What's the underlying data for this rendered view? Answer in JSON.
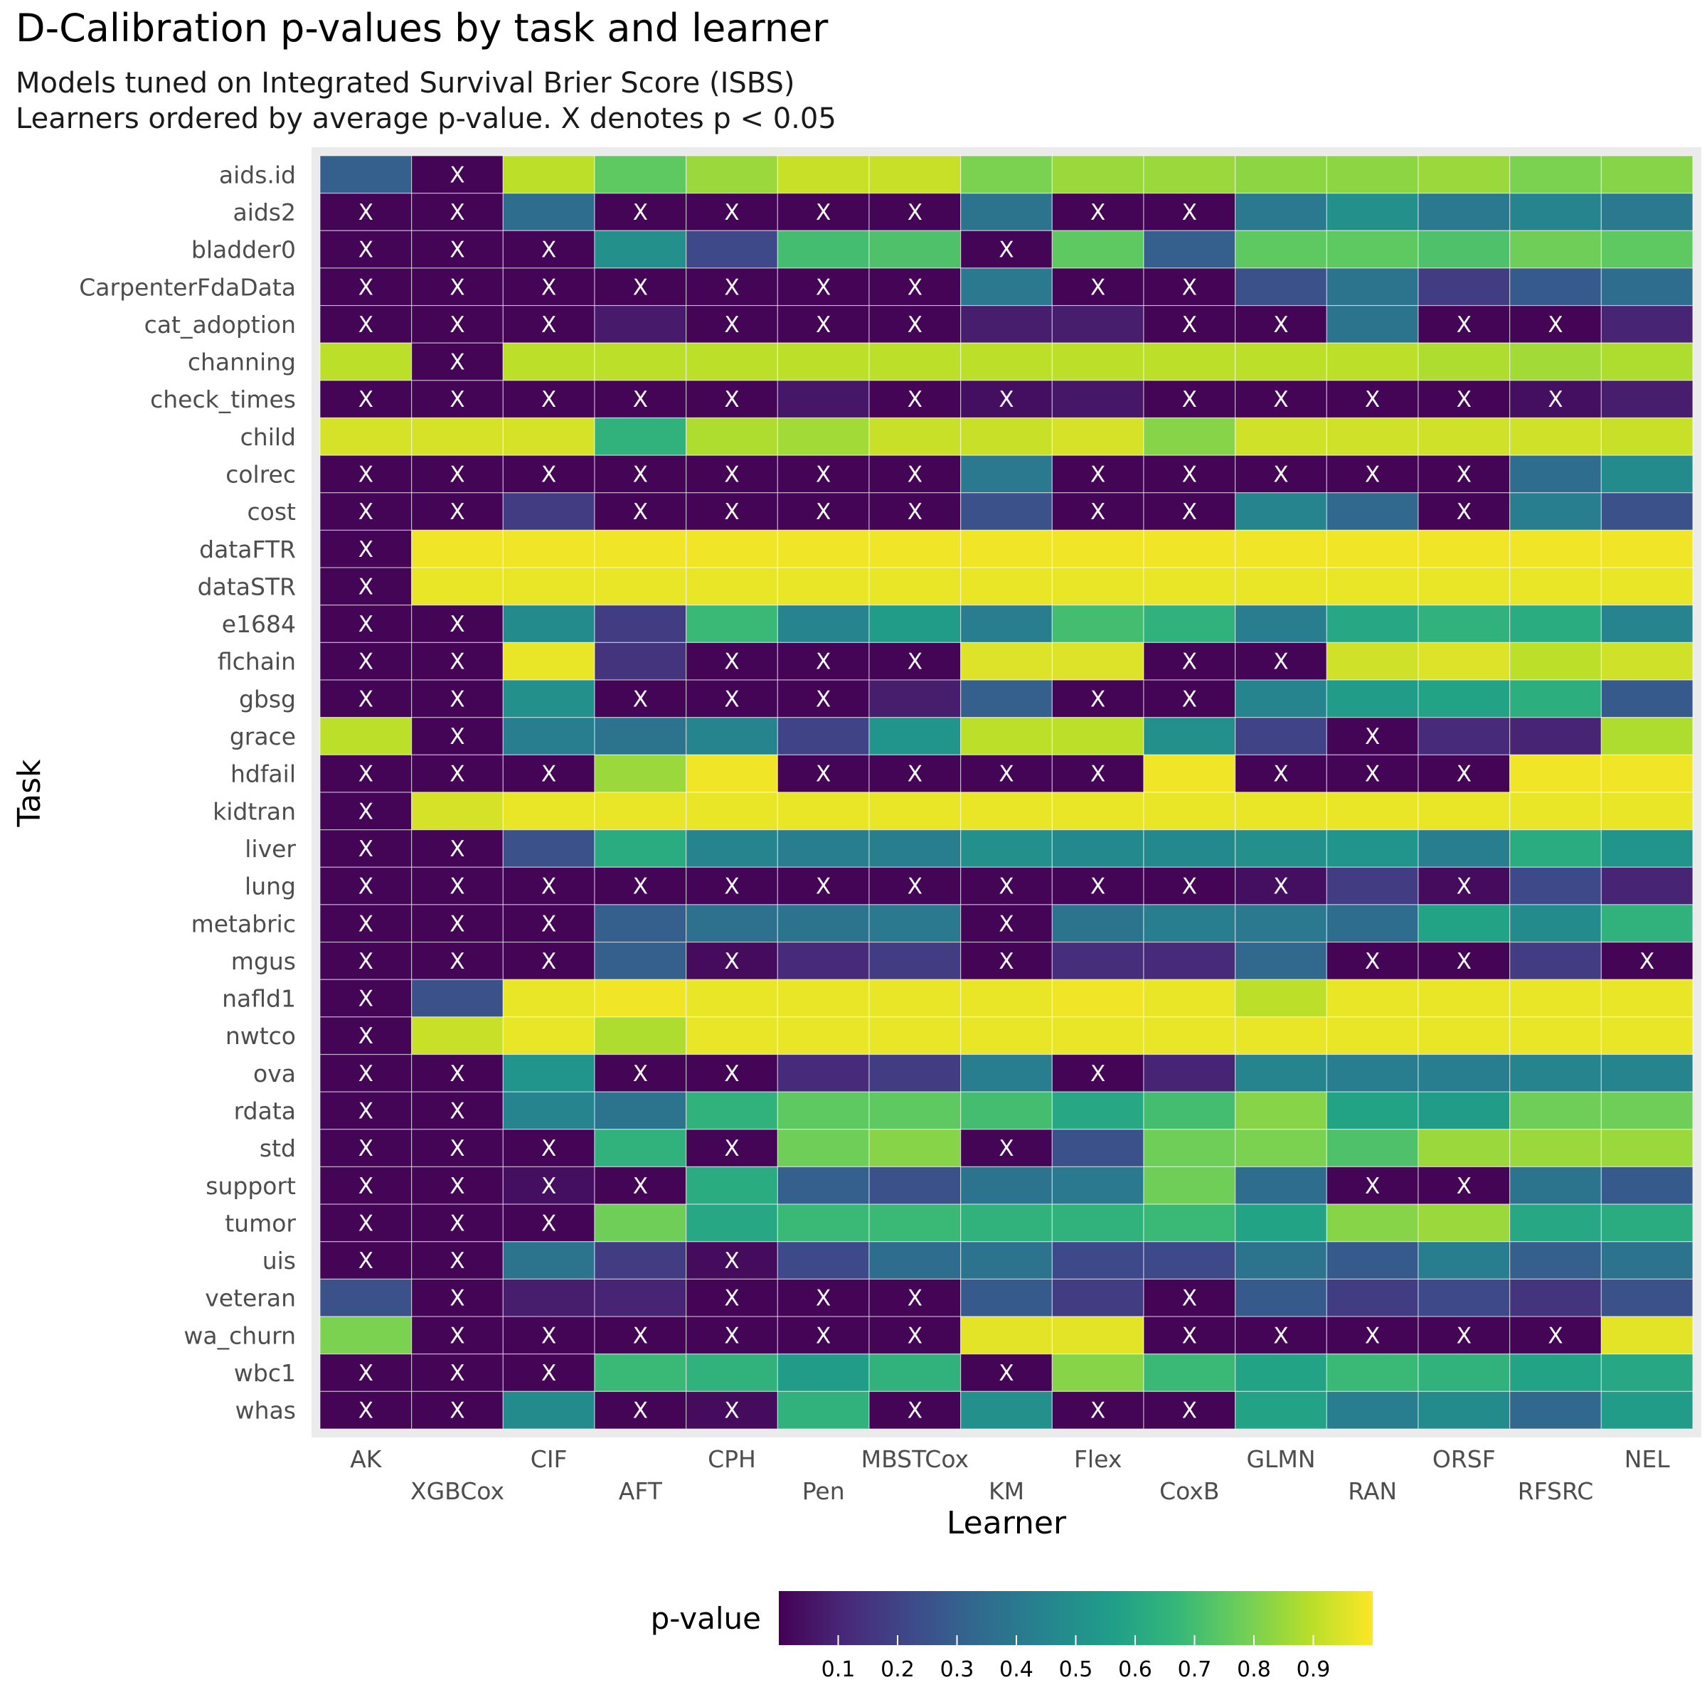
{
  "chart_data": {
    "type": "heatmap",
    "title": "D-Calibration p-values by task and learner",
    "subtitle_lines": [
      "Models tuned on Integrated Survival Brier Score (ISBS)",
      "Learners ordered by average p-value. X denotes p < 0.05"
    ],
    "xlabel": "Learner",
    "ylabel": "Task",
    "legend_title": "p-value",
    "legend_ticks": [
      "0.1",
      "0.2",
      "0.3",
      "0.4",
      "0.5",
      "0.6",
      "0.7",
      "0.8",
      "0.9"
    ],
    "legend_range": [
      0,
      1
    ],
    "legend_position": "bottom",
    "colorscale": "viridis",
    "significance_threshold": 0.05,
    "significance_marker": "X",
    "learners": [
      "AK",
      "XGBCox",
      "CIF",
      "AFT",
      "CPH",
      "Pen",
      "MBSTCox",
      "KM",
      "Flex",
      "CoxB",
      "GLMN",
      "RAN",
      "ORSF",
      "RFSRC",
      "NEL"
    ],
    "tasks": [
      "aids.id",
      "aids2",
      "bladder0",
      "CarpenterFdaData",
      "cat_adoption",
      "channing",
      "check_times",
      "child",
      "colrec",
      "cost",
      "dataFTR",
      "dataSTR",
      "e1684",
      "flchain",
      "gbsg",
      "grace",
      "hdfail",
      "kidtran",
      "liver",
      "lung",
      "metabric",
      "mgus",
      "nafld1",
      "nwtco",
      "ova",
      "rdata",
      "std",
      "support",
      "tumor",
      "uis",
      "veteran",
      "wa_churn",
      "wbc1",
      "whas"
    ],
    "values": [
      [
        0.3,
        0.01,
        0.9,
        0.75,
        0.85,
        0.92,
        0.92,
        0.8,
        0.85,
        0.85,
        0.83,
        0.83,
        0.85,
        0.8,
        0.82
      ],
      [
        0.01,
        0.01,
        0.35,
        0.01,
        0.01,
        0.01,
        0.01,
        0.38,
        0.01,
        0.01,
        0.4,
        0.5,
        0.4,
        0.45,
        0.4
      ],
      [
        0.01,
        0.01,
        0.01,
        0.5,
        0.22,
        0.7,
        0.72,
        0.01,
        0.75,
        0.3,
        0.75,
        0.75,
        0.72,
        0.78,
        0.75
      ],
      [
        0.01,
        0.01,
        0.01,
        0.01,
        0.01,
        0.01,
        0.01,
        0.4,
        0.01,
        0.01,
        0.25,
        0.38,
        0.18,
        0.28,
        0.35
      ],
      [
        0.01,
        0.01,
        0.01,
        0.07,
        0.01,
        0.01,
        0.01,
        0.08,
        0.08,
        0.01,
        0.01,
        0.38,
        0.01,
        0.01,
        0.1
      ],
      [
        0.9,
        0.01,
        0.9,
        0.9,
        0.9,
        0.9,
        0.9,
        0.9,
        0.9,
        0.9,
        0.9,
        0.9,
        0.88,
        0.86,
        0.88
      ],
      [
        0.01,
        0.01,
        0.01,
        0.01,
        0.01,
        0.06,
        0.01,
        0.04,
        0.06,
        0.01,
        0.01,
        0.01,
        0.01,
        0.04,
        0.08
      ],
      [
        0.94,
        0.94,
        0.94,
        0.65,
        0.88,
        0.86,
        0.92,
        0.92,
        0.94,
        0.82,
        0.93,
        0.93,
        0.93,
        0.93,
        0.92
      ],
      [
        0.01,
        0.01,
        0.01,
        0.01,
        0.01,
        0.01,
        0.01,
        0.4,
        0.01,
        0.01,
        0.01,
        0.01,
        0.01,
        0.35,
        0.48
      ],
      [
        0.01,
        0.01,
        0.18,
        0.01,
        0.01,
        0.01,
        0.01,
        0.25,
        0.01,
        0.01,
        0.45,
        0.33,
        0.01,
        0.42,
        0.25
      ],
      [
        0.01,
        0.98,
        0.98,
        0.98,
        0.98,
        0.98,
        0.98,
        0.98,
        0.98,
        0.98,
        0.98,
        0.98,
        0.98,
        0.98,
        0.98
      ],
      [
        0.01,
        0.97,
        0.97,
        0.97,
        0.97,
        0.97,
        0.97,
        0.97,
        0.97,
        0.97,
        0.97,
        0.97,
        0.97,
        0.97,
        0.97
      ],
      [
        0.01,
        0.01,
        0.48,
        0.18,
        0.68,
        0.45,
        0.55,
        0.42,
        0.7,
        0.65,
        0.42,
        0.6,
        0.65,
        0.62,
        0.45
      ],
      [
        0.01,
        0.01,
        0.97,
        0.15,
        0.01,
        0.01,
        0.01,
        0.95,
        0.95,
        0.01,
        0.01,
        0.93,
        0.95,
        0.9,
        0.93
      ],
      [
        0.01,
        0.01,
        0.5,
        0.01,
        0.01,
        0.01,
        0.08,
        0.3,
        0.01,
        0.01,
        0.45,
        0.55,
        0.58,
        0.63,
        0.28
      ],
      [
        0.9,
        0.01,
        0.42,
        0.38,
        0.45,
        0.2,
        0.52,
        0.9,
        0.9,
        0.5,
        0.2,
        0.01,
        0.12,
        0.1,
        0.88
      ],
      [
        0.01,
        0.01,
        0.01,
        0.85,
        0.98,
        0.01,
        0.01,
        0.01,
        0.01,
        0.98,
        0.01,
        0.01,
        0.01,
        0.98,
        0.98
      ],
      [
        0.01,
        0.94,
        0.97,
        0.97,
        0.97,
        0.97,
        0.97,
        0.97,
        0.97,
        0.97,
        0.97,
        0.97,
        0.97,
        0.97,
        0.97
      ],
      [
        0.01,
        0.01,
        0.25,
        0.62,
        0.45,
        0.42,
        0.42,
        0.5,
        0.47,
        0.47,
        0.5,
        0.52,
        0.42,
        0.62,
        0.52
      ],
      [
        0.01,
        0.01,
        0.01,
        0.01,
        0.01,
        0.01,
        0.01,
        0.01,
        0.01,
        0.01,
        0.04,
        0.18,
        0.03,
        0.22,
        0.1
      ],
      [
        0.01,
        0.01,
        0.01,
        0.3,
        0.37,
        0.38,
        0.4,
        0.01,
        0.38,
        0.42,
        0.4,
        0.35,
        0.58,
        0.48,
        0.65
      ],
      [
        0.01,
        0.01,
        0.01,
        0.3,
        0.03,
        0.12,
        0.18,
        0.01,
        0.13,
        0.12,
        0.33,
        0.01,
        0.01,
        0.18,
        0.01
      ],
      [
        0.01,
        0.25,
        0.97,
        0.98,
        0.97,
        0.97,
        0.97,
        0.97,
        0.98,
        0.97,
        0.9,
        0.97,
        0.97,
        0.97,
        0.97
      ],
      [
        0.01,
        0.92,
        0.97,
        0.88,
        0.97,
        0.97,
        0.97,
        0.97,
        0.97,
        0.97,
        0.97,
        0.97,
        0.97,
        0.97,
        0.97
      ],
      [
        0.01,
        0.01,
        0.52,
        0.01,
        0.01,
        0.12,
        0.18,
        0.42,
        0.01,
        0.1,
        0.45,
        0.42,
        0.42,
        0.45,
        0.45
      ],
      [
        0.01,
        0.01,
        0.45,
        0.38,
        0.65,
        0.75,
        0.75,
        0.7,
        0.6,
        0.7,
        0.82,
        0.58,
        0.55,
        0.78,
        0.78
      ],
      [
        0.01,
        0.01,
        0.01,
        0.65,
        0.01,
        0.78,
        0.82,
        0.01,
        0.25,
        0.78,
        0.8,
        0.72,
        0.85,
        0.85,
        0.85
      ],
      [
        0.01,
        0.01,
        0.04,
        0.01,
        0.62,
        0.3,
        0.25,
        0.38,
        0.4,
        0.78,
        0.35,
        0.01,
        0.01,
        0.38,
        0.28
      ],
      [
        0.01,
        0.01,
        0.01,
        0.78,
        0.6,
        0.68,
        0.68,
        0.65,
        0.65,
        0.68,
        0.58,
        0.82,
        0.85,
        0.6,
        0.62
      ],
      [
        0.01,
        0.01,
        0.38,
        0.18,
        0.03,
        0.22,
        0.35,
        0.38,
        0.22,
        0.22,
        0.38,
        0.28,
        0.42,
        0.3,
        0.38
      ],
      [
        0.25,
        0.01,
        0.08,
        0.1,
        0.01,
        0.01,
        0.01,
        0.28,
        0.18,
        0.01,
        0.28,
        0.18,
        0.22,
        0.15,
        0.25
      ],
      [
        0.8,
        0.01,
        0.01,
        0.01,
        0.01,
        0.01,
        0.01,
        0.96,
        0.96,
        0.01,
        0.01,
        0.01,
        0.01,
        0.01,
        0.96
      ],
      [
        0.01,
        0.01,
        0.01,
        0.68,
        0.65,
        0.55,
        0.65,
        0.01,
        0.82,
        0.68,
        0.58,
        0.68,
        0.65,
        0.58,
        0.6
      ],
      [
        0.01,
        0.01,
        0.48,
        0.01,
        0.03,
        0.65,
        0.01,
        0.5,
        0.01,
        0.01,
        0.58,
        0.42,
        0.48,
        0.33,
        0.55
      ]
    ]
  }
}
